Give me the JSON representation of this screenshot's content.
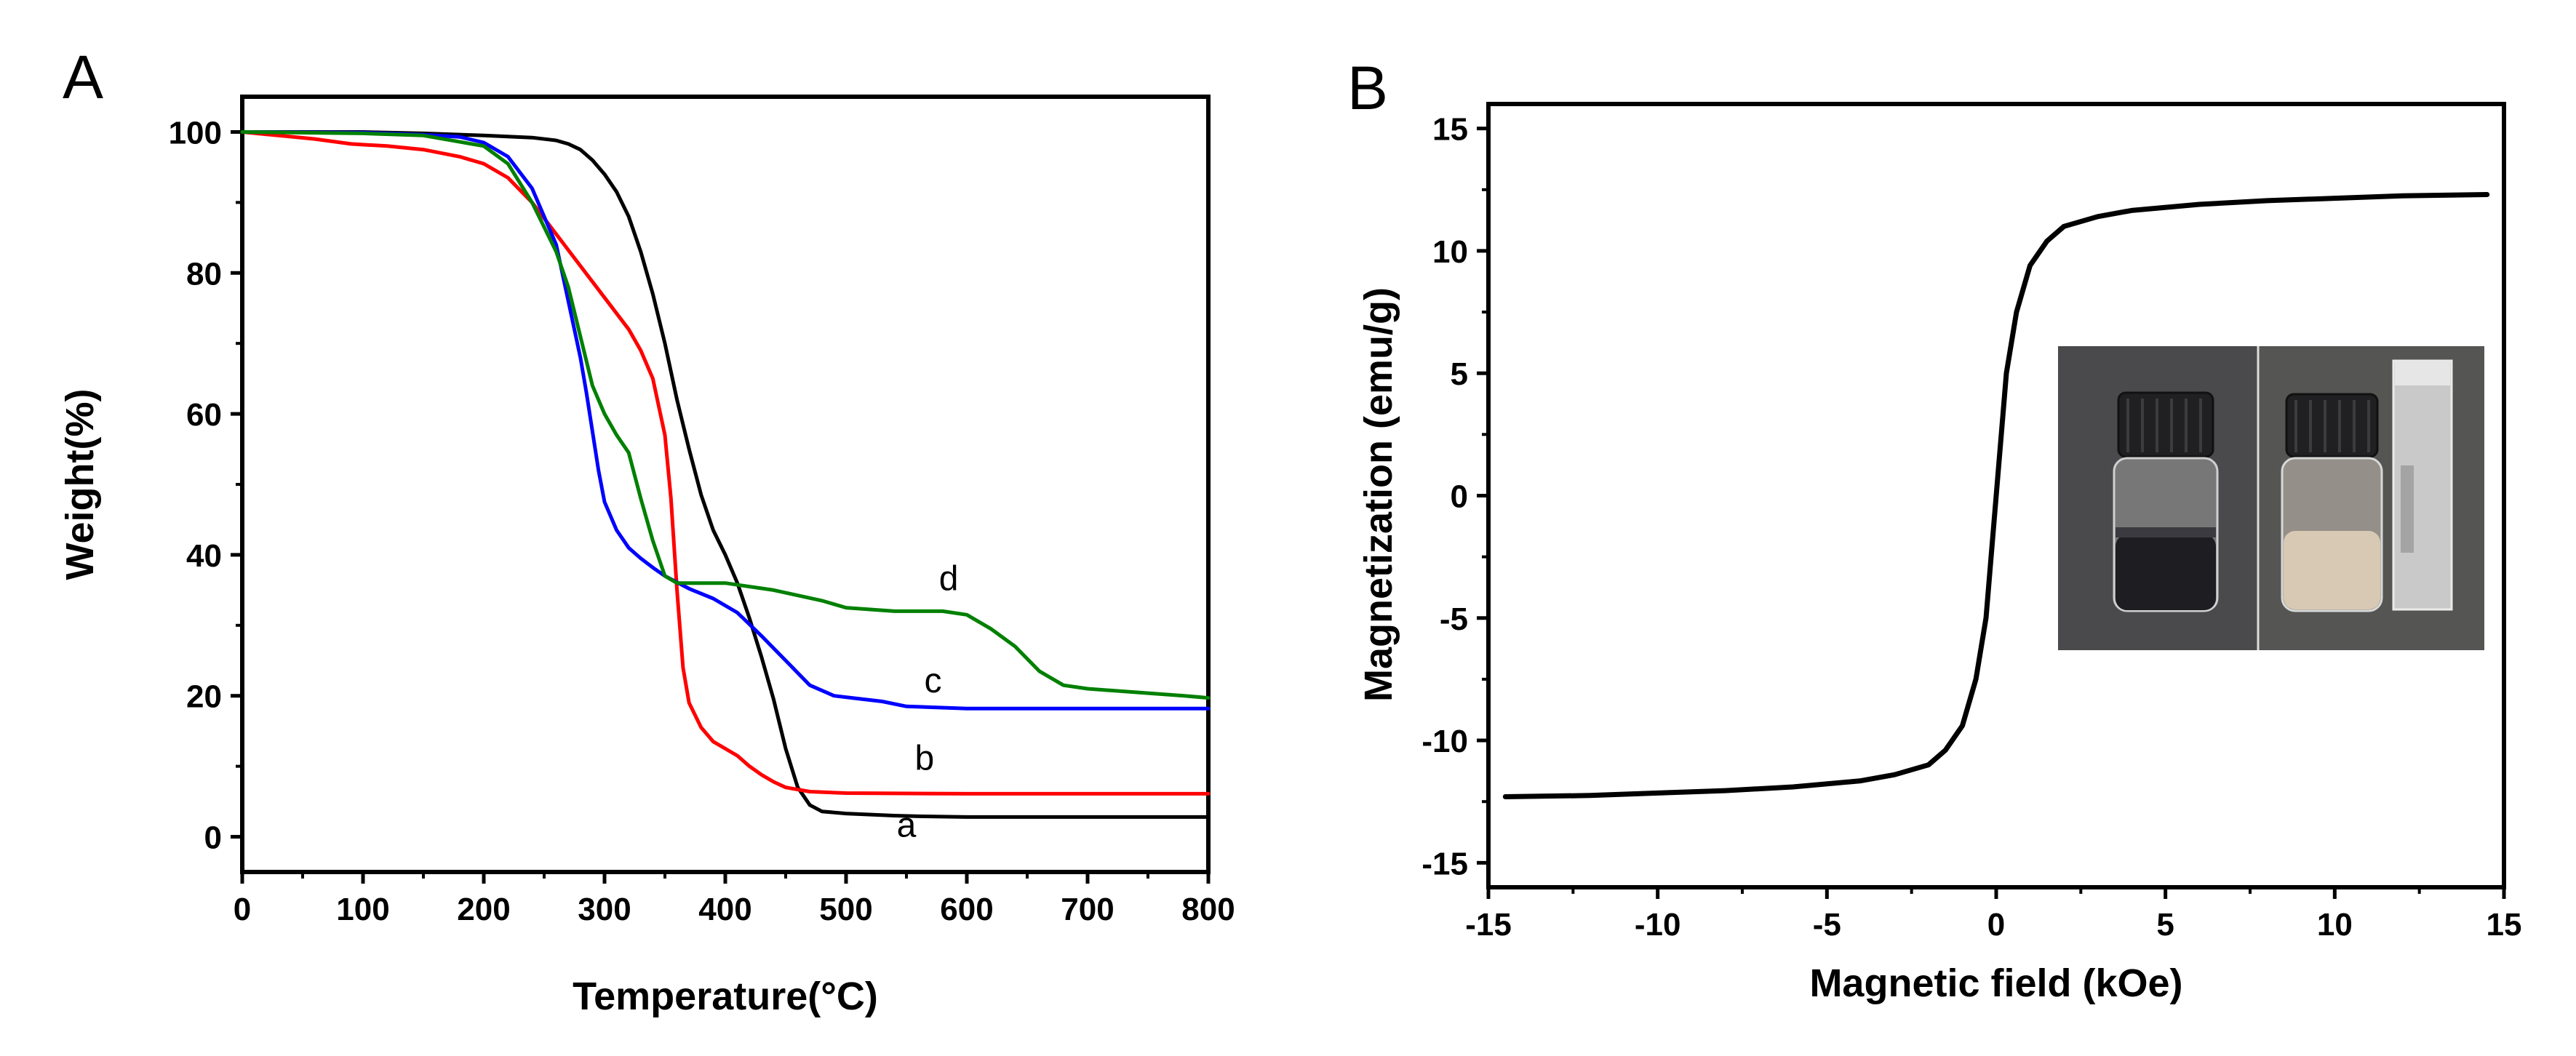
{
  "chart_data": [
    {
      "panel": "A",
      "type": "line",
      "title": "",
      "xlabel": "Temperature(°C)",
      "ylabel": "Weight(%)",
      "xlim": [
        0,
        800
      ],
      "ylim": [
        -5,
        105
      ],
      "xticks": [
        0,
        100,
        200,
        300,
        400,
        500,
        600,
        700,
        800
      ],
      "yticks": [
        0,
        20,
        40,
        60,
        80,
        100
      ],
      "grid": false,
      "series": [
        {
          "name": "a",
          "color": "#000000",
          "label_at": [
            550,
            0
          ],
          "points": [
            [
              0,
              100
            ],
            [
              100,
              100
            ],
            [
              150,
              99.8
            ],
            [
              200,
              99.5
            ],
            [
              240,
              99.2
            ],
            [
              260,
              98.8
            ],
            [
              270,
              98.3
            ],
            [
              280,
              97.5
            ],
            [
              290,
              96.0
            ],
            [
              300,
              94.0
            ],
            [
              310,
              91.5
            ],
            [
              320,
              88.0
            ],
            [
              330,
              83.0
            ],
            [
              340,
              77.0
            ],
            [
              350,
              70.0
            ],
            [
              360,
              62.0
            ],
            [
              370,
              55.0
            ],
            [
              380,
              48.5
            ],
            [
              390,
              43.5
            ],
            [
              400,
              40.0
            ],
            [
              410,
              36.0
            ],
            [
              420,
              31.0
            ],
            [
              430,
              25.5
            ],
            [
              440,
              19.5
            ],
            [
              450,
              12.5
            ],
            [
              460,
              7.0
            ],
            [
              470,
              4.5
            ],
            [
              480,
              3.6
            ],
            [
              500,
              3.3
            ],
            [
              540,
              3.0
            ],
            [
              560,
              2.9
            ],
            [
              600,
              2.8
            ],
            [
              700,
              2.8
            ],
            [
              800,
              2.8
            ]
          ]
        },
        {
          "name": "b",
          "color": "#ff0000",
          "label_at": [
            565,
            9.5
          ],
          "points": [
            [
              0,
              100
            ],
            [
              30,
              99.5
            ],
            [
              60,
              99.0
            ],
            [
              90,
              98.3
            ],
            [
              120,
              98.0
            ],
            [
              150,
              97.5
            ],
            [
              180,
              96.5
            ],
            [
              200,
              95.5
            ],
            [
              220,
              93.5
            ],
            [
              240,
              90.0
            ],
            [
              260,
              85.5
            ],
            [
              280,
              81.0
            ],
            [
              300,
              76.5
            ],
            [
              320,
              72.0
            ],
            [
              330,
              69.0
            ],
            [
              340,
              65.0
            ],
            [
              350,
              57.0
            ],
            [
              355,
              48.0
            ],
            [
              360,
              35.0
            ],
            [
              365,
              24.0
            ],
            [
              370,
              19.0
            ],
            [
              380,
              15.5
            ],
            [
              390,
              13.5
            ],
            [
              400,
              12.5
            ],
            [
              410,
              11.5
            ],
            [
              420,
              10.0
            ],
            [
              430,
              8.8
            ],
            [
              440,
              7.8
            ],
            [
              450,
              7.0
            ],
            [
              470,
              6.4
            ],
            [
              500,
              6.2
            ],
            [
              600,
              6.1
            ],
            [
              700,
              6.1
            ],
            [
              800,
              6.1
            ]
          ]
        },
        {
          "name": "c",
          "color": "#0000ff",
          "label_at": [
            572,
            20.5
          ],
          "points": [
            [
              0,
              100
            ],
            [
              100,
              99.9
            ],
            [
              150,
              99.6
            ],
            [
              180,
              99.3
            ],
            [
              200,
              98.5
            ],
            [
              220,
              96.5
            ],
            [
              240,
              92.0
            ],
            [
              260,
              84.0
            ],
            [
              270,
              76.0
            ],
            [
              280,
              68.0
            ],
            [
              285,
              63.0
            ],
            [
              290,
              57.5
            ],
            [
              295,
              52.0
            ],
            [
              300,
              47.5
            ],
            [
              310,
              43.5
            ],
            [
              320,
              41.0
            ],
            [
              330,
              39.5
            ],
            [
              340,
              38.2
            ],
            [
              350,
              37.0
            ],
            [
              370,
              35.2
            ],
            [
              390,
              33.8
            ],
            [
              410,
              31.8
            ],
            [
              430,
              28.5
            ],
            [
              450,
              25.0
            ],
            [
              470,
              21.5
            ],
            [
              490,
              20.0
            ],
            [
              510,
              19.6
            ],
            [
              530,
              19.2
            ],
            [
              550,
              18.5
            ],
            [
              600,
              18.2
            ],
            [
              700,
              18.2
            ],
            [
              800,
              18.2
            ]
          ]
        },
        {
          "name": "d",
          "color": "#008000",
          "label_at": [
            585,
            35
          ],
          "points": [
            [
              0,
              100
            ],
            [
              100,
              99.8
            ],
            [
              150,
              99.5
            ],
            [
              200,
              98.0
            ],
            [
              220,
              95.5
            ],
            [
              240,
              90.0
            ],
            [
              260,
              83.0
            ],
            [
              270,
              78.0
            ],
            [
              280,
              71.0
            ],
            [
              290,
              64.0
            ],
            [
              300,
              60.0
            ],
            [
              310,
              57.0
            ],
            [
              320,
              54.5
            ],
            [
              330,
              48.0
            ],
            [
              340,
              42.0
            ],
            [
              350,
              37.0
            ],
            [
              360,
              36.0
            ],
            [
              400,
              36.0
            ],
            [
              440,
              35.0
            ],
            [
              480,
              33.5
            ],
            [
              500,
              32.5
            ],
            [
              540,
              32.0
            ],
            [
              580,
              32.0
            ],
            [
              600,
              31.5
            ],
            [
              620,
              29.5
            ],
            [
              640,
              27.0
            ],
            [
              660,
              23.5
            ],
            [
              680,
              21.5
            ],
            [
              700,
              21.0
            ],
            [
              740,
              20.5
            ],
            [
              780,
              20.0
            ],
            [
              800,
              19.7
            ]
          ]
        }
      ]
    },
    {
      "panel": "B",
      "type": "line",
      "title": "",
      "xlabel": "Magnetic field (kOe)",
      "ylabel": "Magnetization  (emu/g)",
      "xlim": [
        -15,
        15
      ],
      "ylim": [
        -16,
        16
      ],
      "xticks": [
        -15,
        -10,
        -5,
        0,
        5,
        10,
        15
      ],
      "yticks": [
        -15,
        -10,
        -5,
        0,
        5,
        10,
        15
      ],
      "grid": false,
      "series": [
        {
          "name": "magnetization",
          "color": "#000000",
          "points": [
            [
              -14.5,
              -12.3
            ],
            [
              -12,
              -12.25
            ],
            [
              -10,
              -12.15
            ],
            [
              -8,
              -12.05
            ],
            [
              -6,
              -11.9
            ],
            [
              -4,
              -11.65
            ],
            [
              -3,
              -11.4
            ],
            [
              -2,
              -11.0
            ],
            [
              -1.5,
              -10.4
            ],
            [
              -1.0,
              -9.4
            ],
            [
              -0.6,
              -7.5
            ],
            [
              -0.3,
              -5.0
            ],
            [
              -0.15,
              -2.5
            ],
            [
              0,
              0
            ],
            [
              0.15,
              2.5
            ],
            [
              0.3,
              5.0
            ],
            [
              0.6,
              7.5
            ],
            [
              1.0,
              9.4
            ],
            [
              1.5,
              10.4
            ],
            [
              2,
              11.0
            ],
            [
              3,
              11.4
            ],
            [
              4,
              11.65
            ],
            [
              6,
              11.9
            ],
            [
              8,
              12.05
            ],
            [
              10,
              12.15
            ],
            [
              12,
              12.25
            ],
            [
              14.5,
              12.3
            ]
          ]
        }
      ],
      "inset": {
        "description_image": "photo of two vials"
      }
    }
  ]
}
